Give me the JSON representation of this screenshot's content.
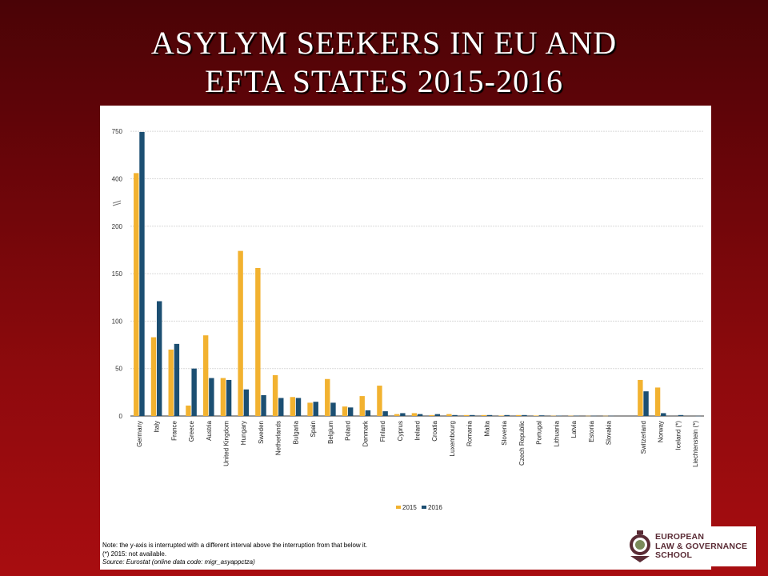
{
  "slide": {
    "title_line1": "ASYLYM SEEKERS IN EU AND",
    "title_line2": "EFTA STATES 2015-2016"
  },
  "colors": {
    "series_2015": "#f2b230",
    "series_2016": "#1c4f72",
    "grid": "#d9d9d9"
  },
  "chart_data": {
    "type": "bar",
    "title": "",
    "xlabel": "",
    "ylabel": "",
    "y_axis_interrupted": true,
    "y_ticks": [
      0,
      50,
      100,
      150,
      200,
      400,
      750
    ],
    "grid": true,
    "legend_position": "bottom-center",
    "categories": [
      "Germany",
      "Italy",
      "France",
      "Greece",
      "Austria",
      "United Kingdom",
      "Hungary",
      "Sweden",
      "Netherlands",
      "Bulgaria",
      "Spain",
      "Belgium",
      "Poland",
      "Denmark",
      "Finland",
      "Cyprus",
      "Ireland",
      "Croatia",
      "Luxembourg",
      "Romania",
      "Malta",
      "Slovenia",
      "Czech Republic",
      "Portugal",
      "Lithuania",
      "Latvia",
      "Estonia",
      "Slovakia",
      "",
      "Switzerland",
      "Norway",
      "Iceland (*)",
      "Liechtenstein (*)"
    ],
    "series": [
      {
        "name": "2015",
        "values": [
          442,
          83,
          70,
          11,
          85,
          40,
          174,
          156,
          43,
          20,
          14,
          39,
          10,
          21,
          32,
          2,
          3,
          1,
          2,
          1,
          1,
          0.5,
          1,
          0.5,
          0.3,
          0.3,
          0.2,
          0.2,
          null,
          38,
          30,
          null,
          null
        ]
      },
      {
        "name": "2016",
        "values": [
          745,
          121,
          76,
          50,
          40,
          38,
          28,
          22,
          19,
          19,
          15,
          14,
          9,
          6,
          5,
          3,
          2,
          2,
          1,
          1,
          1,
          1,
          1,
          0.7,
          0.4,
          0.3,
          0.2,
          0.2,
          null,
          26,
          3,
          1,
          0.1
        ]
      }
    ]
  },
  "notes": {
    "line1": "Note: the y-axis is interrupted with a different interval above the interruption from that below it.",
    "line2": "(*) 2015: not available.",
    "line3": "Source: Eurostat (online data code: migr_asyappctza)"
  },
  "logo": {
    "line1": "EUROPEAN",
    "line2": "LAW & GOVERNANCE",
    "line3": "SCHOOL"
  }
}
